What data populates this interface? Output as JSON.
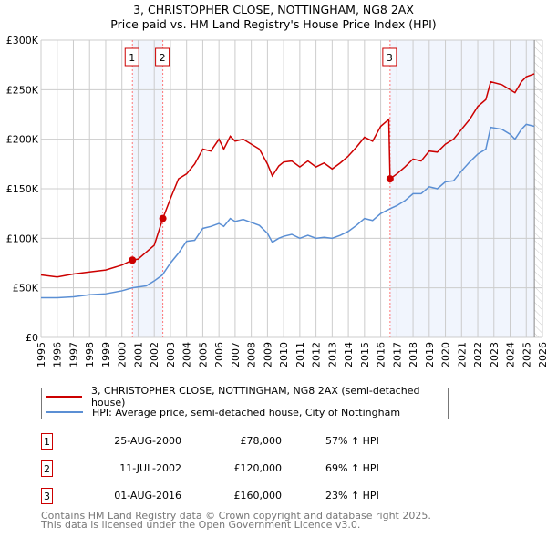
{
  "chart_data": {
    "type": "line",
    "title": "3, CHRISTOPHER CLOSE, NOTTINGHAM, NG8 2AX",
    "subtitle": "Price paid vs. HM Land Registry's House Price Index (HPI)",
    "xlim": [
      1995,
      2026
    ],
    "ylim": [
      0,
      300000
    ],
    "x_ticks": [
      "1995",
      "1996",
      "1997",
      "1998",
      "1999",
      "2000",
      "2001",
      "2002",
      "2003",
      "2004",
      "2005",
      "2006",
      "2007",
      "2008",
      "2009",
      "2010",
      "2011",
      "2012",
      "2013",
      "2014",
      "2015",
      "2016",
      "2017",
      "2018",
      "2019",
      "2020",
      "2021",
      "2022",
      "2023",
      "2024",
      "2025",
      "2026"
    ],
    "y_ticks": [
      {
        "v": 0,
        "label": "£0"
      },
      {
        "v": 50000,
        "label": "£50K"
      },
      {
        "v": 100000,
        "label": "£100K"
      },
      {
        "v": 150000,
        "label": "£150K"
      },
      {
        "v": 200000,
        "label": "£200K"
      },
      {
        "v": 250000,
        "label": "£250K"
      },
      {
        "v": 300000,
        "label": "£300K"
      }
    ],
    "grid": true,
    "series": [
      {
        "name": "3, CHRISTOPHER CLOSE, NOTTINGHAM, NG8 2AX (semi-detached house)",
        "color": "#cc0000",
        "x": [
          1995,
          1996,
          1997,
          1998,
          1999,
          2000,
          2000.65,
          2001,
          2001.5,
          2002,
          2002.53,
          2003,
          2003.5,
          2004,
          2004.5,
          2005,
          2005.5,
          2006,
          2006.3,
          2006.7,
          2007,
          2007.5,
          2008,
          2008.5,
          2009,
          2009.3,
          2009.7,
          2010,
          2010.5,
          2011,
          2011.5,
          2012,
          2012.5,
          2013,
          2013.5,
          2014,
          2014.5,
          2015,
          2015.5,
          2016,
          2016.5,
          2016.58,
          2017,
          2017.5,
          2018,
          2018.5,
          2019,
          2019.5,
          2020,
          2020.5,
          2021,
          2021.5,
          2022,
          2022.5,
          2022.8,
          2023.5,
          2024,
          2024.3,
          2024.7,
          2025,
          2025.5
        ],
        "y": [
          63000,
          61000,
          64000,
          66000,
          68000,
          73000,
          78000,
          79000,
          86000,
          93000,
          120000,
          140000,
          160000,
          165000,
          175000,
          190000,
          188000,
          200000,
          190000,
          203000,
          198000,
          200000,
          195000,
          190000,
          175000,
          163000,
          173000,
          177000,
          178000,
          172000,
          178000,
          172000,
          176000,
          170000,
          176000,
          183000,
          192000,
          202000,
          198000,
          213000,
          220000,
          160000,
          165000,
          172000,
          180000,
          178000,
          188000,
          187000,
          195000,
          200000,
          210000,
          220000,
          233000,
          240000,
          258000,
          255000,
          250000,
          247000,
          258000,
          263000,
          266000
        ]
      },
      {
        "name": "HPI: Average price, semi-detached house, City of Nottingham",
        "color": "#5b8fd4",
        "x": [
          1995,
          1996,
          1997,
          1998,
          1999,
          2000,
          2000.65,
          2001.5,
          2002,
          2002.5,
          2003,
          2003.5,
          2004,
          2004.5,
          2005,
          2005.5,
          2006,
          2006.3,
          2006.7,
          2007,
          2007.5,
          2008,
          2008.5,
          2009,
          2009.3,
          2009.7,
          2010,
          2010.5,
          2011,
          2011.5,
          2012,
          2012.5,
          2013,
          2013.5,
          2014,
          2014.5,
          2015,
          2015.5,
          2016,
          2016.6,
          2017,
          2017.5,
          2018,
          2018.5,
          2019,
          2019.5,
          2020,
          2020.5,
          2021,
          2021.5,
          2022,
          2022.5,
          2022.8,
          2023.5,
          2024,
          2024.3,
          2024.7,
          2025,
          2025.5
        ],
        "y": [
          40000,
          40000,
          41000,
          43000,
          44000,
          47000,
          50000,
          52000,
          57000,
          63000,
          75000,
          85000,
          97000,
          98000,
          110000,
          112000,
          115000,
          112000,
          120000,
          117000,
          119000,
          116000,
          113000,
          105000,
          96000,
          100000,
          102000,
          104000,
          100000,
          103000,
          100000,
          101000,
          100000,
          103000,
          107000,
          113000,
          120000,
          118000,
          125000,
          130000,
          133000,
          138000,
          145000,
          145000,
          152000,
          150000,
          157000,
          158000,
          168000,
          177000,
          185000,
          190000,
          212000,
          210000,
          205000,
          200000,
          210000,
          215000,
          213000
        ]
      }
    ],
    "sales": [
      {
        "id": "1",
        "x": 2000.65,
        "price": 78000,
        "date": "25-AUG-2000",
        "price_label": "£78,000",
        "hpi": "57% ↑ HPI"
      },
      {
        "id": "2",
        "x": 2002.53,
        "price": 120000,
        "date": "11-JUL-2002",
        "price_label": "£120,000",
        "hpi": "69% ↑ HPI"
      },
      {
        "id": "3",
        "x": 2016.58,
        "price": 160000,
        "date": "01-AUG-2016",
        "price_label": "£160,000",
        "hpi": "23% ↑ HPI"
      }
    ],
    "forecast_start": 2025.5
  },
  "legend": {
    "red": "3, CHRISTOPHER CLOSE, NOTTINGHAM, NG8 2AX (semi-detached house)",
    "blue": "HPI: Average price, semi-detached house, City of Nottingham"
  },
  "footer": [
    "Contains HM Land Registry data © Crown copyright and database right 2025.",
    "This data is licensed under the Open Government Licence v3.0."
  ]
}
